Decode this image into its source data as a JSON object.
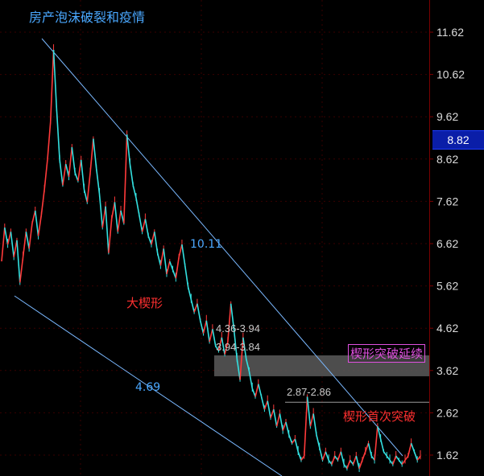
{
  "title": "房产泡沫破裂和疫情",
  "current_price": "8.82",
  "annotations": {
    "upper_line_value": "10.11",
    "lower_line_value": "4.69",
    "big_wedge": "大楔形",
    "zone1_top": "4.36-3.94",
    "zone1_bottom": "3.94-3.84",
    "wedge_continue": "楔形突破延续",
    "zone2": "2.87-2.86",
    "first_break": "楔形首次突破"
  },
  "colors": {
    "up": "#ff3a3a",
    "down": "#33e0e0",
    "trendline": "#7ab8ff",
    "grid": "#3a0000",
    "zone": "#5a5a5a"
  },
  "chart_data": {
    "type": "line",
    "title": "房产泡沫破裂和疫情",
    "ylim": [
      1.2,
      12.1
    ],
    "y_ticks": [
      "11.62",
      "10.62",
      "9.62",
      "8.62",
      "7.62",
      "6.62",
      "5.62",
      "4.62",
      "3.62",
      "2.62",
      "1.62"
    ],
    "series": [
      {
        "values": [
          6.2,
          7.0,
          6.6,
          6.9,
          6.3,
          6.7,
          5.7,
          6.3,
          6.9,
          6.5,
          7.1,
          7.4,
          6.8,
          7.3,
          7.9,
          8.6,
          9.5,
          11.2,
          9.8,
          8.6,
          8.0,
          8.5,
          8.2,
          8.9,
          8.3,
          8.1,
          8.6,
          7.9,
          7.6,
          8.3,
          9.1,
          8.4,
          7.8,
          7.0,
          7.5,
          6.4,
          7.2,
          7.6,
          6.9,
          7.4,
          7.1,
          9.2,
          8.5,
          8.0,
          7.7,
          7.3,
          6.9,
          7.2,
          6.8,
          6.6,
          6.9,
          6.4,
          6.1,
          6.5,
          5.9,
          6.2,
          6.0,
          5.8,
          6.3,
          6.6,
          6.1,
          5.6,
          5.3,
          5.0,
          5.2,
          4.8,
          4.5,
          4.8,
          4.3,
          4.6,
          4.2,
          4.1,
          4.4,
          4.0,
          4.3,
          5.2,
          4.6,
          3.9,
          3.4,
          4.4,
          3.9,
          3.6,
          3.2,
          3.0,
          3.3,
          3.0,
          2.7,
          2.9,
          2.5,
          2.7,
          2.3,
          2.6,
          2.2,
          2.4,
          2.1,
          1.9,
          2.0,
          1.7,
          1.5,
          1.6,
          3.0,
          2.3,
          2.6,
          2.1,
          1.8,
          1.5,
          1.7,
          1.5,
          1.4,
          1.6,
          1.5,
          1.7,
          1.4,
          1.3,
          1.5,
          1.4,
          1.6,
          1.3,
          1.5,
          1.7,
          1.9,
          1.6,
          1.5,
          2.3,
          2.0,
          1.7,
          1.6,
          1.5,
          1.4,
          1.6,
          1.5,
          1.4,
          1.5,
          1.6,
          1.9,
          1.7,
          1.5,
          1.6
        ]
      }
    ]
  }
}
